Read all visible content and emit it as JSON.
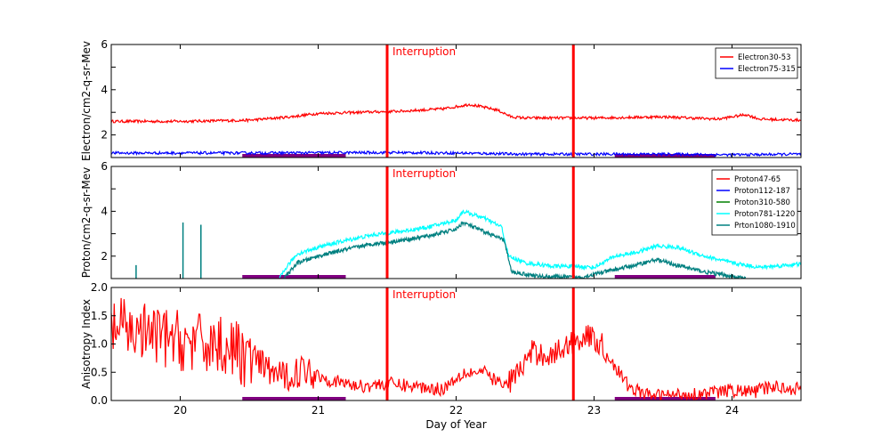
{
  "colors": {
    "red": "#ff0000",
    "blue": "#0000ff",
    "green": "#008000",
    "cyan": "#00ffff",
    "teal": "#008080",
    "purple": "#800080"
  },
  "chart_data": [
    {
      "type": "line",
      "panel": "electron",
      "ylabel": "Electron/cm2-q-sr-Mev",
      "ylim": [
        1,
        6
      ],
      "yticks": [
        2,
        4,
        6
      ],
      "xlim": [
        19.5,
        24.5
      ],
      "interruptions": [
        21.5,
        22.85
      ],
      "interruption_label": "Interruption",
      "bars": [
        [
          20.45,
          21.2
        ],
        [
          23.15,
          23.88
        ]
      ],
      "legend": [
        "Electron30-53",
        "Electron75-315"
      ],
      "series": [
        {
          "name": "Electron30-53",
          "color": "#ff0000",
          "x": [
            19.5,
            20.0,
            20.5,
            20.8,
            21.0,
            21.3,
            21.6,
            21.9,
            22.1,
            22.3,
            22.4,
            22.5,
            22.8,
            23.0,
            23.5,
            23.9,
            24.1,
            24.2,
            24.5
          ],
          "y": [
            2.6,
            2.6,
            2.65,
            2.8,
            2.95,
            3.0,
            3.05,
            3.15,
            3.35,
            3.1,
            2.8,
            2.75,
            2.75,
            2.75,
            2.8,
            2.7,
            2.9,
            2.7,
            2.65
          ]
        },
        {
          "name": "Electron75-315",
          "color": "#0000ff",
          "x": [
            19.5,
            20.5,
            21.5,
            22.0,
            22.5,
            23.0,
            23.5,
            24.0,
            24.5
          ],
          "y": [
            1.2,
            1.2,
            1.22,
            1.2,
            1.15,
            1.15,
            1.15,
            1.12,
            1.15
          ]
        }
      ]
    },
    {
      "type": "line",
      "panel": "proton",
      "ylabel": "Proton/cm2-q-sr-Mev",
      "ylim": [
        1,
        6
      ],
      "yticks": [
        2,
        4,
        6
      ],
      "xlim": [
        19.5,
        24.5
      ],
      "interruptions": [
        21.5,
        22.85
      ],
      "interruption_label": "Interruption",
      "bars": [
        [
          20.45,
          21.2
        ],
        [
          23.15,
          23.88
        ]
      ],
      "legend": [
        "Proton47-65",
        "Proton112-187",
        "Proton310-580",
        "Proton781-1220",
        "Prton1080-1910"
      ],
      "series": [
        {
          "name": "Proton47-65",
          "color": "#ff0000",
          "x": [],
          "y": []
        },
        {
          "name": "Proton112-187",
          "color": "#0000ff",
          "x": [],
          "y": []
        },
        {
          "name": "Proton310-580",
          "color": "#008000",
          "x": [],
          "y": []
        },
        {
          "name": "Proton781-1220",
          "color": "#00ffff",
          "x": [
            20.72,
            20.78,
            20.85,
            21.0,
            21.2,
            21.4,
            21.6,
            21.8,
            22.0,
            22.05,
            22.2,
            22.33,
            22.38,
            22.5,
            22.7,
            22.85,
            23.0,
            23.15,
            23.3,
            23.45,
            23.6,
            23.8,
            24.0,
            24.2,
            24.5
          ],
          "y": [
            1.0,
            1.6,
            2.1,
            2.4,
            2.7,
            2.95,
            3.1,
            3.3,
            3.6,
            4.0,
            3.7,
            3.3,
            2.0,
            1.7,
            1.55,
            1.55,
            1.5,
            2.0,
            2.15,
            2.45,
            2.4,
            2.0,
            1.7,
            1.5,
            1.65
          ]
        },
        {
          "name": "Prton1080-1910",
          "color": "#008080",
          "x": [
            20.75,
            20.85,
            21.0,
            21.2,
            21.4,
            21.6,
            21.8,
            22.0,
            22.05,
            22.2,
            22.35,
            22.4,
            22.6,
            22.9,
            23.15,
            23.3,
            23.45,
            23.6,
            23.8,
            24.0,
            24.1
          ],
          "y": [
            1.0,
            1.7,
            2.0,
            2.3,
            2.55,
            2.7,
            2.9,
            3.2,
            3.5,
            3.1,
            2.7,
            1.3,
            1.1,
            1.05,
            1.4,
            1.6,
            1.85,
            1.6,
            1.3,
            1.1,
            1.0
          ]
        }
      ],
      "spikes": [
        [
          19.68,
          1.6
        ],
        [
          20.02,
          3.5
        ],
        [
          20.15,
          3.4
        ]
      ]
    },
    {
      "type": "line",
      "panel": "anisotropy",
      "ylabel": "Anisotropy Index",
      "xlabel": "Day of Year",
      "ylim": [
        0,
        2
      ],
      "yticks": [
        "0.0",
        "0.5",
        "1.0",
        "1.5",
        "2.0"
      ],
      "ytick_values": [
        0,
        0.5,
        1.0,
        1.5,
        2.0
      ],
      "xlim": [
        19.5,
        24.5
      ],
      "xticks": [
        20,
        21,
        22,
        23,
        24
      ],
      "interruptions": [
        21.5,
        22.85
      ],
      "interruption_label": "Interruption",
      "bars": [
        [
          20.45,
          21.2
        ],
        [
          23.15,
          23.88
        ]
      ],
      "series": [
        {
          "name": "Anisotropy",
          "color": "#ff0000",
          "x": [
            19.5,
            19.7,
            19.9,
            20.1,
            20.3,
            20.45,
            20.6,
            20.75,
            20.9,
            21.1,
            21.3,
            21.5,
            21.7,
            21.9,
            22.05,
            22.2,
            22.35,
            22.45,
            22.55,
            22.7,
            22.85,
            22.95,
            23.05,
            23.15,
            23.25,
            23.4,
            23.6,
            23.8,
            24.0,
            24.15,
            24.3,
            24.5
          ],
          "y": [
            1.3,
            1.2,
            1.1,
            1.0,
            1.0,
            0.8,
            0.6,
            0.4,
            0.55,
            0.35,
            0.25,
            0.3,
            0.25,
            0.2,
            0.5,
            0.5,
            0.25,
            0.5,
            0.85,
            0.8,
            1.05,
            1.15,
            1.0,
            0.6,
            0.25,
            0.08,
            0.1,
            0.12,
            0.18,
            0.15,
            0.25,
            0.2
          ]
        }
      ]
    }
  ]
}
